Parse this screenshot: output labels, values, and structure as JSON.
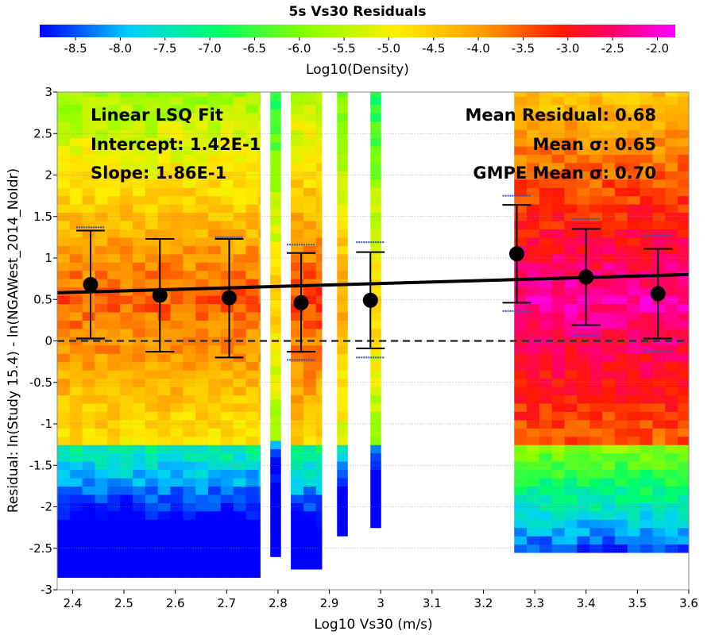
{
  "chart_data": {
    "type": "heatmap",
    "title": "5s Vs30 Residuals",
    "xlabel": "Log10 Vs30 (m/s)",
    "ylabel": "Residual: ln(Study 15.4) - ln(NGAWest_2014_NoIdr)",
    "xlim": [
      2.37,
      3.6
    ],
    "ylim": [
      -3,
      3
    ],
    "x_ticks": [
      "2.4",
      "2.5",
      "2.6",
      "2.7",
      "2.8",
      "2.9",
      "3",
      "3.1",
      "3.2",
      "3.3",
      "3.4",
      "3.5",
      "3.6"
    ],
    "y_ticks": [
      "3",
      "2.5",
      "2",
      "1.5",
      "1",
      "0.5",
      "0",
      "-0.5",
      "-1",
      "-1.5",
      "-2",
      "-2.5",
      "-3"
    ],
    "colorbar": {
      "label": "Log10(Density)",
      "range": [
        -8.9,
        -1.8
      ],
      "ticks": [
        "-8.5",
        "-8.0",
        "-7.5",
        "-7.0",
        "-6.5",
        "-6.0",
        "-5.5",
        "-5.0",
        "-4.5",
        "-4.0",
        "-3.5",
        "-3.0",
        "-2.5",
        "-2.0"
      ]
    },
    "grid": true,
    "fit_line": {
      "x": [
        2.37,
        3.6
      ],
      "y": [
        0.58,
        0.8
      ]
    },
    "zero_line": 0,
    "bins": [
      {
        "x": 2.435,
        "mean": 0.68,
        "std_low": 0.03,
        "std_high": 1.33,
        "gmpe_low": 0.02,
        "gmpe_high": 1.37
      },
      {
        "x": 2.57,
        "mean": 0.55,
        "std_low": -0.13,
        "std_high": 1.23
      },
      {
        "x": 2.705,
        "mean": 0.52,
        "std_low": -0.2,
        "std_high": 1.23,
        "gmpe_low": -0.2,
        "gmpe_high": 1.25
      },
      {
        "x": 2.845,
        "mean": 0.46,
        "std_low": -0.13,
        "std_high": 1.06,
        "gmpe_low": -0.23,
        "gmpe_high": 1.16
      },
      {
        "x": 2.98,
        "mean": 0.49,
        "std_low": -0.09,
        "std_high": 1.07,
        "gmpe_low": -0.2,
        "gmpe_high": 1.19
      },
      {
        "x": 3.265,
        "mean": 1.05,
        "std_low": 0.46,
        "std_high": 1.64,
        "gmpe_low": 0.36,
        "gmpe_high": 1.75
      },
      {
        "x": 3.4,
        "mean": 0.77,
        "std_low": 0.19,
        "std_high": 1.35,
        "gmpe_low": 0.07,
        "gmpe_high": 1.47
      },
      {
        "x": 3.54,
        "mean": 0.57,
        "std_low": 0.03,
        "std_high": 1.11,
        "gmpe_low": -0.12,
        "gmpe_high": 1.27
      }
    ],
    "density_columns": [
      {
        "x0": 2.37,
        "x1": 2.765,
        "ymin": -2.85,
        "ymax": 3.0,
        "core": -3.5
      },
      {
        "x0": 2.785,
        "x1": 2.805,
        "ymin": -2.6,
        "ymax": 3.0,
        "core": -4.5
      },
      {
        "x0": 2.825,
        "x1": 2.885,
        "ymin": -2.75,
        "ymax": 3.0,
        "core": -3.3
      },
      {
        "x0": 2.915,
        "x1": 2.935,
        "ymin": -2.35,
        "ymax": 3.0,
        "core": -4.0
      },
      {
        "x0": 2.98,
        "x1": 3.0,
        "ymin": -2.25,
        "ymax": 3.0,
        "core": -4.5
      },
      {
        "x0": 3.26,
        "x1": 3.6,
        "ymin": -2.55,
        "ymax": 3.0,
        "core": -2.2
      }
    ]
  },
  "annotations": {
    "fit_title": "Linear LSQ Fit",
    "intercept": "Intercept: 1.42E-1",
    "slope": "Slope: 1.86E-1",
    "mean_residual": "Mean Residual: 0.68",
    "mean_sigma": "Mean σ: 0.65",
    "gmpe_sigma": "GMPE Mean σ: 0.70"
  },
  "colors": {
    "fit_line": "#000000",
    "error_bar": "#000000",
    "gmpe_bar": "#3355aa",
    "zero_line": "#333333",
    "grid": "#888888"
  }
}
